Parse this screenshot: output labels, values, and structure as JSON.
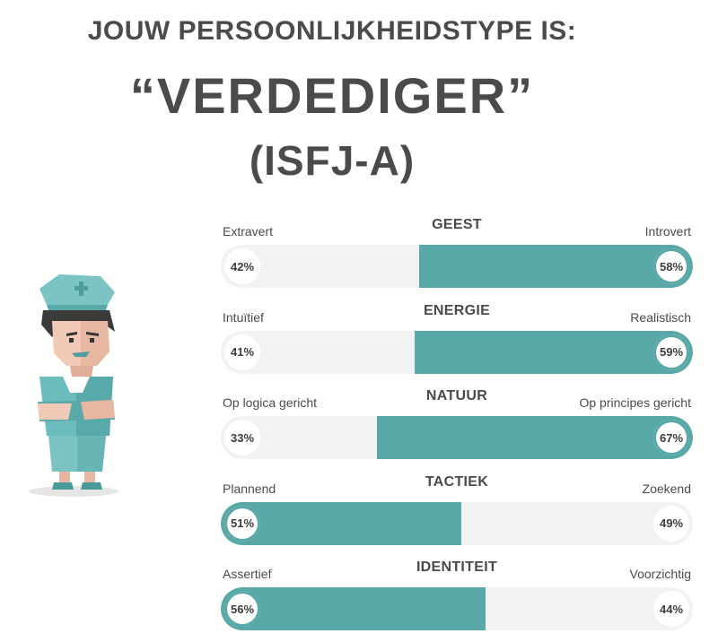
{
  "header": {
    "heading": "JOUW PERSOONLIJKHEIDSTYPE IS:",
    "type_name": "“VERDEDIGER”",
    "type_code": "(ISFJ-A)"
  },
  "illustration": {
    "icon": "nurse-character-icon"
  },
  "colors": {
    "accent": "#59a8a8",
    "track": "#f2f2f2",
    "text": "#4a4a4a"
  },
  "traits": [
    {
      "category": "GEEST",
      "left_label": "Extravert",
      "right_label": "Introvert",
      "left_pct": "42%",
      "right_pct": "58%",
      "dominant": "right",
      "dominant_value": 58
    },
    {
      "category": "ENERGIE",
      "left_label": "Intuïtief",
      "right_label": "Realistisch",
      "left_pct": "41%",
      "right_pct": "59%",
      "dominant": "right",
      "dominant_value": 59
    },
    {
      "category": "NATUUR",
      "left_label": "Op logica gericht",
      "right_label": "Op principes gericht",
      "left_pct": "33%",
      "right_pct": "67%",
      "dominant": "right",
      "dominant_value": 67
    },
    {
      "category": "TACTIEK",
      "left_label": "Plannend",
      "right_label": "Zoekend",
      "left_pct": "51%",
      "right_pct": "49%",
      "dominant": "left",
      "dominant_value": 51
    },
    {
      "category": "IDENTITEIT",
      "left_label": "Assertief",
      "right_label": "Voorzichtig",
      "left_pct": "56%",
      "right_pct": "44%",
      "dominant": "left",
      "dominant_value": 56
    }
  ]
}
